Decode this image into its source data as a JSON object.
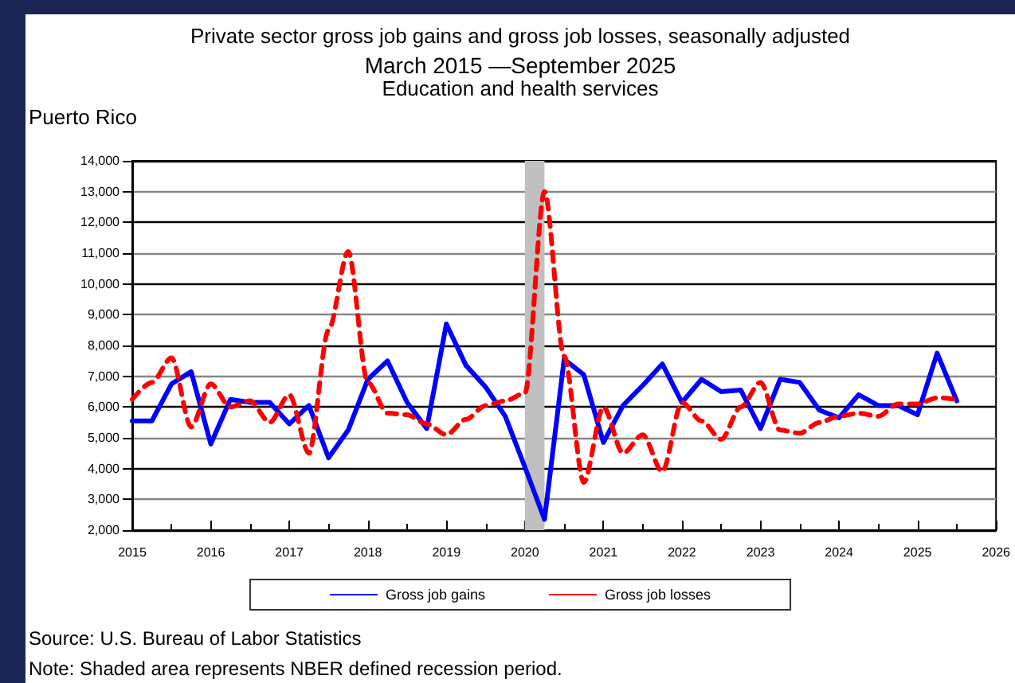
{
  "chart_data": {
    "type": "line",
    "title": "Private sector gross job gains and gross job losses, seasonally adjusted",
    "subtitle": "March 2015 —September 2025",
    "annotations": [
      "Education and health services",
      "Puerto Rico",
      "Source: U.S. Bureau of Labor Statistics",
      "Note: Shaded area represents NBER defined recession period."
    ],
    "x": [
      2015,
      2015.25,
      2015.5,
      2015.75,
      2016,
      2016.25,
      2016.5,
      2016.75,
      2017,
      2017.25,
      2017.5,
      2017.75,
      2018,
      2018.25,
      2018.5,
      2018.75,
      2019,
      2019.25,
      2019.5,
      2019.75,
      2020,
      2020.25,
      2020.5,
      2020.75,
      2021,
      2021.25,
      2021.5,
      2021.75,
      2022,
      2022.25,
      2022.5,
      2022.75,
      2023,
      2023.25,
      2023.5,
      2023.75,
      2024,
      2024.25,
      2024.5,
      2024.75,
      2025,
      2025.25,
      2025.5
    ],
    "series": [
      {
        "name": "Gross job gains",
        "color": "#0000ff",
        "line_style": "solid",
        "values": [
          5550,
          5550,
          6750,
          7150,
          4800,
          6250,
          6150,
          6150,
          5450,
          6050,
          4350,
          5250,
          6900,
          7500,
          6150,
          5300,
          8700,
          7350,
          6650,
          5700,
          4050,
          2350,
          7550,
          7050,
          4850,
          6050,
          6700,
          7400,
          6150,
          6900,
          6500,
          6550,
          5300,
          6900,
          6800,
          5900,
          5650,
          6400,
          6050,
          6050,
          5750,
          7750,
          6200
        ]
      },
      {
        "name": "Gross job losses",
        "color": "#ff0000",
        "line_style": "dashed",
        "values": [
          6250,
          6800,
          7600,
          5350,
          6750,
          6000,
          6200,
          5500,
          6400,
          4500,
          8500,
          11050,
          6800,
          5800,
          5750,
          5450,
          5100,
          5600,
          6050,
          6200,
          6450,
          13000,
          7650,
          3550,
          6000,
          4500,
          5100,
          3900,
          6150,
          5550,
          4950,
          6000,
          6800,
          5250,
          5150,
          5500,
          5700,
          5800,
          5700,
          6100,
          6100,
          6300,
          6250
        ]
      }
    ],
    "xlim": [
      2015,
      2026
    ],
    "xticks": [
      2015,
      2016,
      2017,
      2018,
      2019,
      2020,
      2021,
      2022,
      2023,
      2024,
      2025,
      2026
    ],
    "ylim": [
      2000,
      14000
    ],
    "yticks": [
      {
        "value": 2000,
        "label": "2,000"
      },
      {
        "value": 3000,
        "label": "3,000"
      },
      {
        "value": 4000,
        "label": "4,000"
      },
      {
        "value": 5000,
        "label": "5,000"
      },
      {
        "value": 6000,
        "label": "6,000"
      },
      {
        "value": 7000,
        "label": "7,000"
      },
      {
        "value": 8000,
        "label": "8,000"
      },
      {
        "value": 9000,
        "label": "9,000"
      },
      {
        "value": 10000,
        "label": "10,000"
      },
      {
        "value": 11000,
        "label": "11,000"
      },
      {
        "value": 12000,
        "label": "12,000"
      },
      {
        "value": 13000,
        "label": "13,000"
      },
      {
        "value": 14000,
        "label": "14,000"
      }
    ],
    "bands": [
      {
        "axis": "x",
        "from": 2020,
        "to": 2020.25,
        "color": "#c0c0c0"
      }
    ],
    "grid": "y",
    "legend": "bottom",
    "marker": "none"
  }
}
